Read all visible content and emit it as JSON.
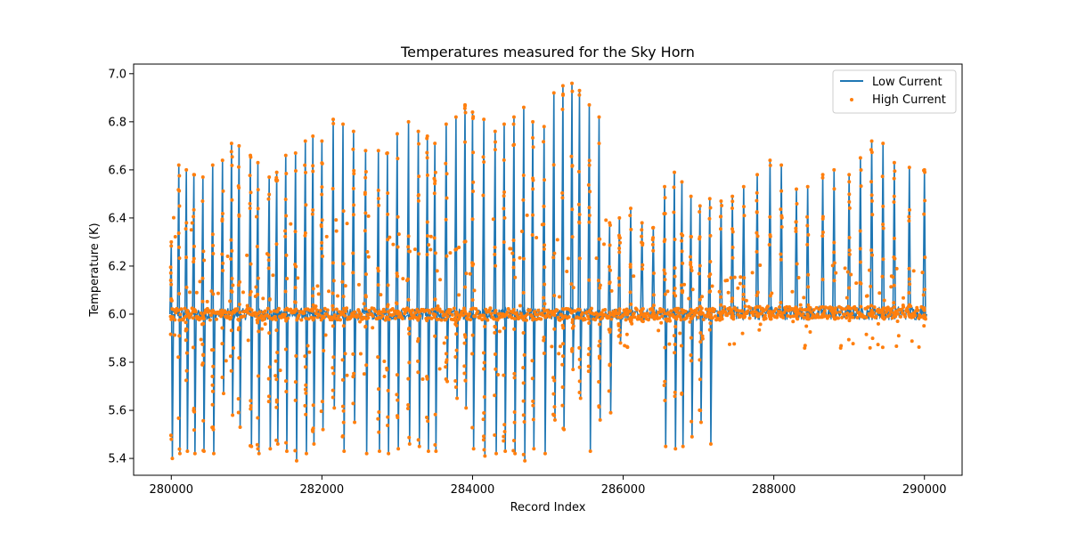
{
  "chart_data": {
    "type": "line",
    "title": "Temperatures measured for the Sky Horn",
    "xlabel": "Record Index",
    "ylabel": "Temperature (K)",
    "xlim": [
      279500,
      290500
    ],
    "ylim": [
      5.33,
      7.04
    ],
    "x_ticks": [
      280000,
      282000,
      284000,
      286000,
      288000,
      290000
    ],
    "x_tick_labels": [
      "280000",
      "282000",
      "284000",
      "286000",
      "288000",
      "290000"
    ],
    "y_ticks": [
      5.4,
      5.6,
      5.8,
      6.0,
      6.2,
      6.4,
      6.6,
      6.8,
      7.0
    ],
    "y_tick_labels": [
      "5.4",
      "5.6",
      "5.8",
      "6.0",
      "6.2",
      "6.4",
      "6.6",
      "6.8",
      "7.0"
    ],
    "grid": false,
    "legend_position": "top-right",
    "baseline": 6.0,
    "colors": {
      "low_current": "#1f77b4",
      "high_current": "#ff7f0e"
    },
    "series": [
      {
        "name": "Low Current",
        "style": "line",
        "color": "#1f77b4",
        "x": [
          280000,
          280100,
          280200,
          280300,
          280420,
          280550,
          280680,
          280800,
          280900,
          281050,
          281150,
          281300,
          281400,
          281520,
          281650,
          281780,
          281880,
          282000,
          282150,
          282280,
          282420,
          282580,
          282750,
          282870,
          283000,
          283150,
          283280,
          283400,
          283500,
          283650,
          283780,
          283900,
          284000,
          284150,
          284300,
          284420,
          284550,
          284680,
          284800,
          284950,
          285080,
          285200,
          285320,
          285420,
          285550,
          285680,
          285820,
          285950,
          286100,
          286250,
          286400,
          286550,
          286680,
          286780,
          286900,
          287020,
          287150,
          287300,
          287450,
          287600,
          287780,
          287950,
          288100,
          288300,
          288450,
          288650,
          288800,
          289000,
          289150,
          289300,
          289450,
          289600,
          289800,
          290000
        ],
        "high": [
          6.3,
          6.62,
          6.6,
          6.58,
          6.57,
          6.62,
          6.64,
          6.71,
          6.7,
          6.66,
          6.63,
          6.57,
          6.59,
          6.66,
          6.67,
          6.72,
          6.74,
          6.72,
          6.81,
          6.79,
          6.76,
          6.68,
          6.68,
          6.67,
          6.75,
          6.8,
          6.76,
          6.74,
          6.71,
          6.79,
          6.82,
          6.87,
          6.84,
          6.81,
          6.76,
          6.79,
          6.82,
          6.86,
          6.8,
          6.78,
          6.92,
          6.95,
          6.96,
          6.93,
          6.87,
          6.82,
          6.38,
          6.4,
          6.44,
          6.38,
          6.36,
          6.53,
          6.59,
          6.55,
          6.49,
          6.45,
          6.48,
          6.47,
          6.49,
          6.53,
          6.58,
          6.64,
          6.62,
          6.52,
          6.53,
          6.58,
          6.6,
          6.58,
          6.65,
          6.72,
          6.71,
          6.63,
          6.61,
          6.6
        ],
        "low": [
          5.4,
          5.42,
          5.43,
          5.42,
          5.43,
          5.42,
          5.67,
          5.58,
          5.53,
          5.45,
          5.42,
          5.44,
          5.46,
          5.43,
          5.39,
          5.42,
          5.46,
          5.52,
          5.61,
          5.43,
          5.55,
          5.42,
          5.43,
          5.42,
          5.44,
          5.46,
          5.45,
          5.43,
          5.43,
          5.72,
          5.65,
          5.61,
          5.44,
          5.41,
          5.42,
          5.43,
          5.42,
          5.39,
          5.44,
          5.42,
          5.56,
          5.52,
          5.77,
          5.65,
          5.43,
          5.56,
          5.59,
          5.88,
          5.96,
          5.97,
          5.98,
          5.45,
          5.44,
          5.45,
          5.49,
          5.55,
          5.46,
          5.98,
          5.98,
          5.99,
          5.99,
          5.98,
          5.99,
          5.98,
          5.98,
          5.99,
          5.98,
          5.99,
          5.99,
          5.99,
          5.98,
          5.99,
          5.99,
          5.98
        ]
      },
      {
        "name": "High Current",
        "style": "scatter",
        "color": "#ff7f0e"
      }
    ]
  }
}
